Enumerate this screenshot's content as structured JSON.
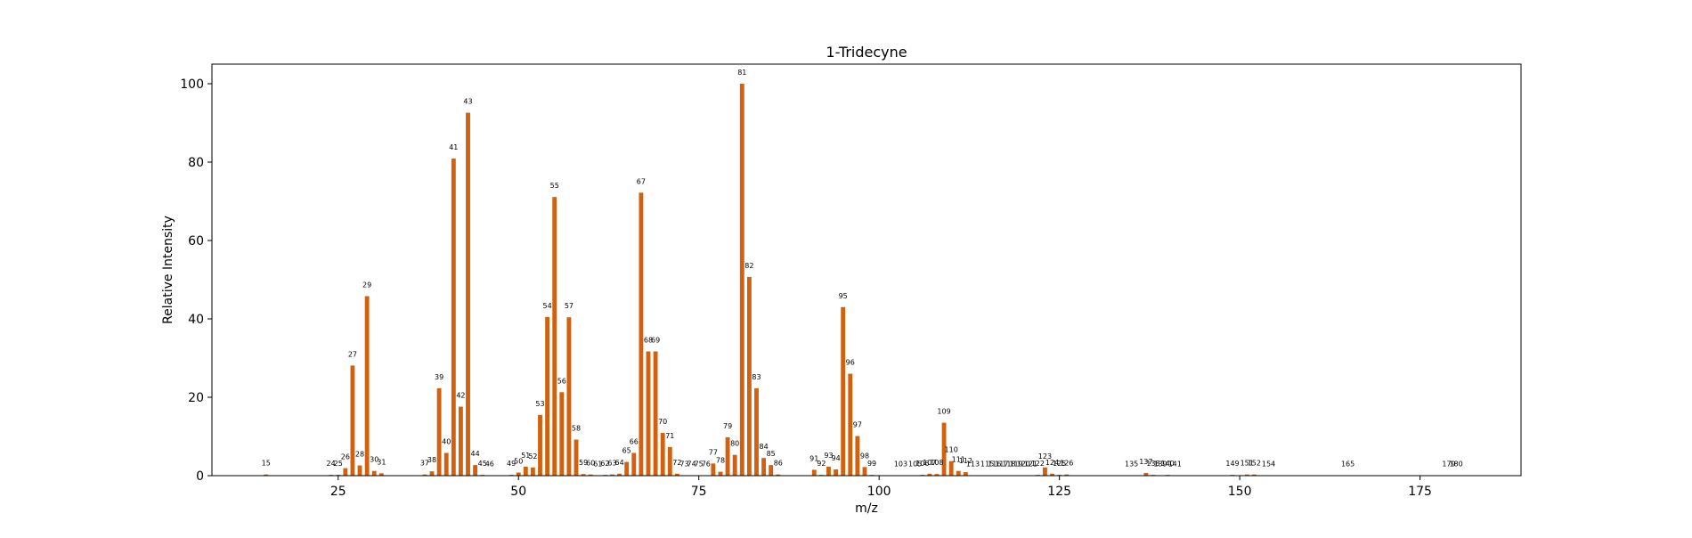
{
  "chart_data": {
    "type": "bar",
    "title": "1-Tridecyne",
    "xlabel": "m/z",
    "ylabel": "Relative Intensity",
    "xlim": [
      7.5,
      189
    ],
    "ylim": [
      0,
      105
    ],
    "xticks": [
      25,
      50,
      75,
      100,
      125,
      150,
      175
    ],
    "yticks": [
      0,
      20,
      40,
      60,
      80,
      100
    ],
    "grid": false,
    "bar_color": "#d2610f",
    "bar_width": 0.6,
    "x": [
      15,
      24,
      25,
      26,
      27,
      28,
      29,
      30,
      31,
      37,
      38,
      39,
      40,
      41,
      42,
      43,
      44,
      45,
      46,
      49,
      50,
      51,
      52,
      53,
      54,
      55,
      56,
      57,
      58,
      59,
      60,
      61,
      62,
      63,
      64,
      65,
      66,
      67,
      68,
      69,
      70,
      71,
      72,
      73,
      74,
      75,
      76,
      77,
      78,
      79,
      80,
      81,
      82,
      83,
      84,
      85,
      86,
      91,
      92,
      93,
      94,
      95,
      96,
      97,
      98,
      99,
      103,
      105,
      106,
      107,
      108,
      109,
      110,
      111,
      112,
      113,
      115,
      116,
      117,
      118,
      119,
      120,
      121,
      122,
      123,
      124,
      125,
      126,
      135,
      137,
      138,
      139,
      140,
      141,
      149,
      151,
      152,
      154,
      165,
      179,
      180
    ],
    "values": [
      0.3,
      0.2,
      0.2,
      1.9,
      28.1,
      2.6,
      45.8,
      1.2,
      0.6,
      0.3,
      1.1,
      22.3,
      5.8,
      80.9,
      17.6,
      92.6,
      2.7,
      0.2,
      0.1,
      0.2,
      0.8,
      2.3,
      2.1,
      15.5,
      40.5,
      71.1,
      21.3,
      40.4,
      9.2,
      0.4,
      0.3,
      0.1,
      0.2,
      0.3,
      0.5,
      3.5,
      5.8,
      72.2,
      31.7,
      31.7,
      10.9,
      7.3,
      0.5,
      0.1,
      0.1,
      0.1,
      0.1,
      3.1,
      1.0,
      9.8,
      5.3,
      100.0,
      50.7,
      22.3,
      4.5,
      2.7,
      0.3,
      1.5,
      0.2,
      2.3,
      1.6,
      43.0,
      26.0,
      10.1,
      2.2,
      0.2,
      0.1,
      0.1,
      0.2,
      0.5,
      0.4,
      13.5,
      3.7,
      1.2,
      0.9,
      0.1,
      0.1,
      0.1,
      0.1,
      0.1,
      0.1,
      0.1,
      0.1,
      0.2,
      2.1,
      0.5,
      0.2,
      0.3,
      0.1,
      0.7,
      0.2,
      0.1,
      0.2,
      0.1,
      0.2,
      0.3,
      0.3,
      0.1,
      0.1,
      0.1,
      0.1
    ],
    "labels": [
      "15",
      "24",
      "25",
      "26",
      "27",
      "28",
      "29",
      "30",
      "31",
      "37",
      "38",
      "39",
      "40",
      "41",
      "42",
      "43",
      "44",
      "45",
      "46",
      "49",
      "50",
      "51",
      "52",
      "53",
      "54",
      "55",
      "56",
      "57",
      "58",
      "59",
      "60",
      "61",
      "62",
      "63",
      "64",
      "65",
      "66",
      "67",
      "68",
      "69",
      "70",
      "71",
      "72",
      "73",
      "74",
      "75",
      "76",
      "77",
      "78",
      "79",
      "80",
      "81",
      "82",
      "83",
      "84",
      "85",
      "86",
      "91",
      "92",
      "93",
      "94",
      "95",
      "96",
      "97",
      "98",
      "99",
      "103",
      "105",
      "106",
      "107",
      "108",
      "109",
      "110",
      "111",
      "112",
      "113",
      "115",
      "116",
      "117",
      "118",
      "119",
      "120",
      "121",
      "122",
      "123",
      "124",
      "125",
      "126",
      "135",
      "137",
      "138",
      "139",
      "140",
      "141",
      "149",
      "151",
      "152",
      "154",
      "165",
      "179",
      "180"
    ]
  }
}
